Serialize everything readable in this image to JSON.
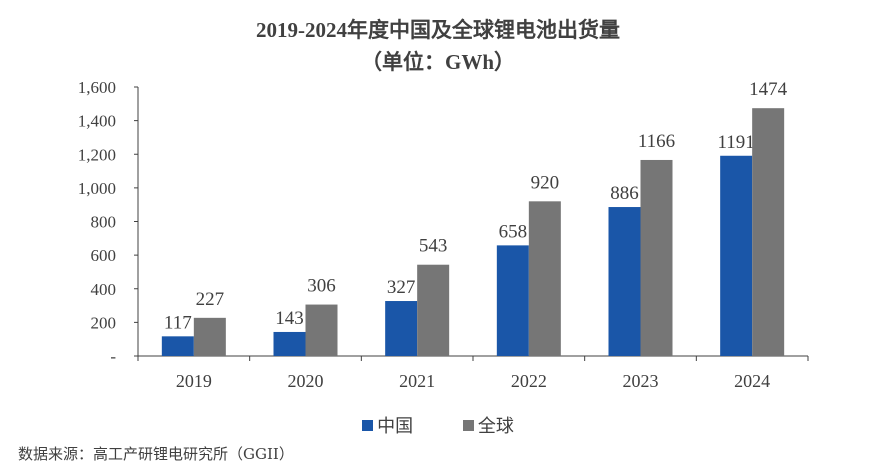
{
  "chart_data": {
    "type": "bar",
    "title": "2019-2024年度中国及全球锂电池出货量",
    "subtitle": "（单位：GWh）",
    "categories": [
      "2019",
      "2020",
      "2021",
      "2022",
      "2023",
      "2024"
    ],
    "series": [
      {
        "name": "中国",
        "values": [
          117,
          143,
          327,
          658,
          886,
          1191
        ],
        "color": "#1a56a8"
      },
      {
        "name": "全球",
        "values": [
          227,
          306,
          543,
          920,
          1166,
          1474
        ],
        "color": "#767676"
      }
    ],
    "ylim": [
      0,
      1600
    ],
    "yticks": [
      0,
      200,
      400,
      600,
      800,
      1000,
      1200,
      1400,
      1600
    ],
    "ytick_labels": [
      "-",
      "200",
      "400",
      "600",
      "800",
      "1,000",
      "1,200",
      "1,400",
      "1,600"
    ],
    "grid": false,
    "legend": "bottom"
  },
  "source": "数据来源：高工产研锂电研究所（GGII）"
}
